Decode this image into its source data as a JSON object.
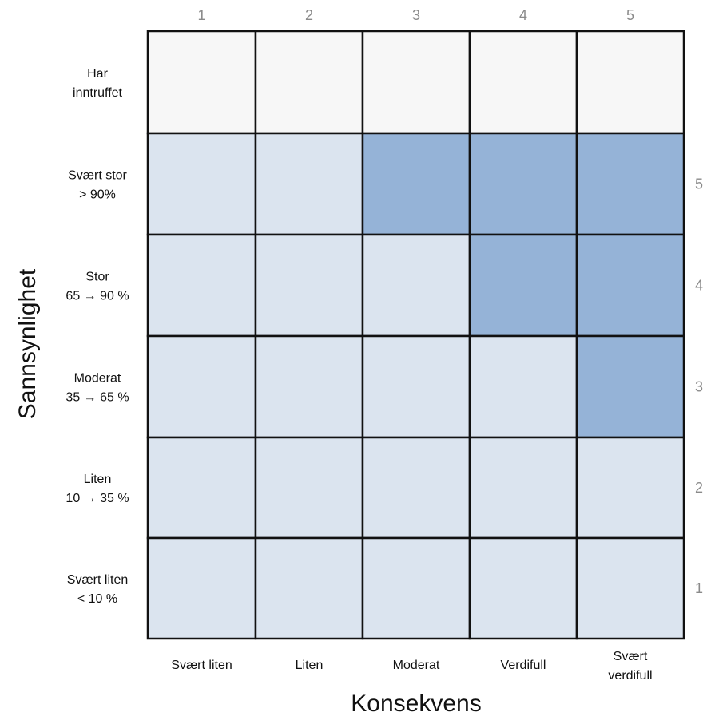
{
  "colors": {
    "empty": "#f7f7f7",
    "low": "#dbe4ef",
    "high": "#95b3d7",
    "grid": "#111111",
    "number": "#8a8a8a"
  },
  "x_axis": {
    "title": "Konsekvens",
    "numbers": [
      "1",
      "2",
      "3",
      "4",
      "5"
    ],
    "labels": [
      [
        "Svært liten"
      ],
      [
        "Liten"
      ],
      [
        "Moderat"
      ],
      [
        "Verdifull"
      ],
      [
        "Svært",
        "verdifull"
      ]
    ]
  },
  "y_axis": {
    "title": "Sannsynlighet",
    "rows": [
      {
        "label": [
          "Har",
          "inntruffet"
        ],
        "number": ""
      },
      {
        "label": [
          "Svært stor",
          "> 90%"
        ],
        "number": "5"
      },
      {
        "label": [
          "Stor",
          "65 → 90 %"
        ],
        "number": "4"
      },
      {
        "label": [
          "Moderat",
          "35 → 65 %"
        ],
        "number": "3"
      },
      {
        "label": [
          "Liten",
          "10 → 35 %"
        ],
        "number": "2"
      },
      {
        "label": [
          "Svært liten",
          "< 10 %"
        ],
        "number": "1"
      }
    ]
  },
  "cells": [
    [
      "empty",
      "empty",
      "empty",
      "empty",
      "empty"
    ],
    [
      "low",
      "low",
      "high",
      "high",
      "high"
    ],
    [
      "low",
      "low",
      "low",
      "high",
      "high"
    ],
    [
      "low",
      "low",
      "low",
      "low",
      "high"
    ],
    [
      "low",
      "low",
      "low",
      "low",
      "low"
    ],
    [
      "low",
      "low",
      "low",
      "low",
      "low"
    ]
  ]
}
